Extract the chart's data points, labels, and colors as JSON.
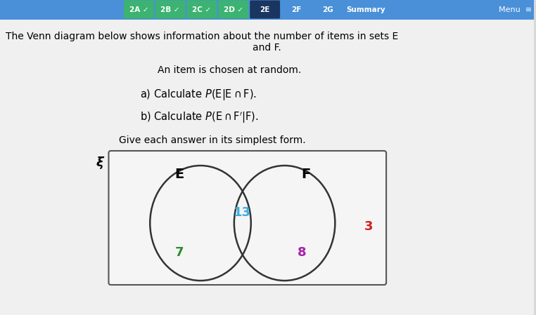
{
  "bg_color": "#d8d8d8",
  "active_tab": "2E",
  "tab_defs": [
    [
      "2A",
      true
    ],
    [
      "2B",
      true
    ],
    [
      "2C",
      true
    ],
    [
      "2D",
      true
    ],
    [
      "2E",
      false
    ],
    [
      "2F",
      false
    ],
    [
      "2G",
      false
    ],
    [
      "Summary",
      false
    ]
  ],
  "title_line1": "The Venn diagram below shows information about the number of items in sets E",
  "title_line2": "and F.",
  "subtitle": "An item is chosen at random.",
  "part_a": "a) Calculate $P(\\mathrm{E}|\\mathrm{E}\\cap \\mathrm{F})$.",
  "part_b": "b) Calculate $P(\\mathrm{E}\\cap \\mathrm{F}'|\\mathrm{F})$.",
  "footer": "Give each answer in its simplest form.",
  "venn_E_only": "7",
  "venn_E_only_color": "#2e8b2e",
  "venn_intersection": "13",
  "venn_intersection_color": "#3aaddf",
  "venn_F_only": "8",
  "venn_F_only_color": "#aa22aa",
  "venn_outside": "3",
  "venn_outside_color": "#cc2222",
  "tab_active_color": "#1a3560",
  "tab_check_color": "#3cb371",
  "header_bg_color": "#4a90d9",
  "content_bg_color": "#f0f0f0",
  "venn_box_bg": "#f5f5f5"
}
